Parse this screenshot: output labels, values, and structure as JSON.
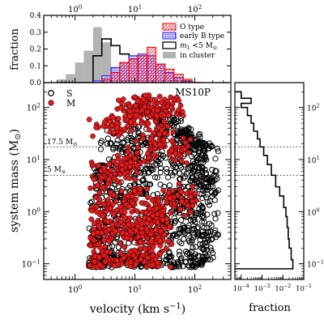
{
  "chart_data": [
    {
      "panel": "top-histogram",
      "type": "bar",
      "ylabel": "fraction",
      "xscale": "log",
      "xlim": [
        0.3,
        400
      ],
      "ylim": [
        0,
        0.4
      ],
      "x_tick_labels": [
        "10^0",
        "10^1",
        "10^2"
      ],
      "x_ticks": [
        1,
        10,
        100
      ],
      "y_tick_labels": [
        "0.0",
        "0.1",
        "0.2",
        "0.3",
        "0.4"
      ],
      "y_ticks": [
        0,
        0.1,
        0.2,
        0.3,
        0.4
      ],
      "bin_edges": [
        0.5,
        0.7,
        1.0,
        1.4,
        2.0,
        2.8,
        4.0,
        5.6,
        8.0,
        11.2,
        16,
        22.4,
        32,
        45,
        64,
        90,
        128
      ],
      "series": [
        {
          "name": "in cluster",
          "style": "gray-fill",
          "color": "#b3b3b3",
          "values": [
            0.02,
            0.05,
            0.12,
            0.19,
            0.33,
            0.24,
            0.07,
            0.02,
            0.0,
            0.0,
            0.0,
            0.0,
            0.0,
            0.0,
            0.0,
            0.0
          ]
        },
        {
          "name": "m_1 <5 M_⊙",
          "style": "black-step",
          "color": "#000000",
          "values": [
            0.0,
            0.0,
            0.0,
            0.0,
            0.16,
            0.26,
            0.22,
            0.17,
            0.13,
            0.09,
            0.05,
            0.03,
            0.01,
            0.0,
            0.0,
            0.0
          ]
        },
        {
          "name": "early B type",
          "style": "blue-grid",
          "color": "#1f1fff",
          "values": [
            0.0,
            0.0,
            0.0,
            0.0,
            0.01,
            0.04,
            0.09,
            0.12,
            0.16,
            0.17,
            0.16,
            0.11,
            0.06,
            0.03,
            0.01,
            0.0
          ]
        },
        {
          "name": "O type",
          "style": "red-hatch",
          "color": "#ff0000",
          "values": [
            0.0,
            0.0,
            0.0,
            0.0,
            0.0,
            0.02,
            0.06,
            0.12,
            0.14,
            0.16,
            0.21,
            0.11,
            0.08,
            0.05,
            0.02,
            0.0
          ]
        }
      ],
      "legend_position": "top-right"
    },
    {
      "panel": "main-scatter",
      "type": "scatter",
      "title": "MS10P",
      "xlabel": "velocity (km s^−1)",
      "ylabel": "system mass (M_⊙)",
      "xscale": "log",
      "yscale": "log",
      "xlim": [
        0.3,
        400
      ],
      "ylim": [
        0.05,
        300
      ],
      "x_tick_labels": [
        "10^0",
        "10^1",
        "10^2"
      ],
      "x_ticks": [
        1,
        10,
        100
      ],
      "y_tick_labels": [
        "10^-1",
        "10^0",
        "10^1",
        "10^2"
      ],
      "y_ticks": [
        0.1,
        1,
        10,
        100
      ],
      "reference_lines": [
        {
          "y": 17.5,
          "label": "17.5 M_⊙",
          "style": "dotted"
        },
        {
          "y": 5,
          "label": "5 M_⊙",
          "style": "dotted"
        }
      ],
      "legend": [
        {
          "name": "S",
          "marker": "open-circle-black"
        },
        {
          "name": "M",
          "marker": "filled-circle-red"
        }
      ],
      "series": [
        {
          "name": "S",
          "marker": "open-circle",
          "color": "#000000",
          "description_points": [
            [
              2.0,
              0.09
            ],
            [
              3.0,
              0.1
            ],
            [
              5.0,
              0.12
            ],
            [
              8.0,
              0.09
            ],
            [
              12,
              0.1
            ],
            [
              20,
              0.11
            ],
            [
              40,
              0.1
            ],
            [
              70,
              0.09
            ],
            [
              120,
              0.1
            ],
            [
              2.0,
              0.3
            ],
            [
              4.0,
              0.5
            ],
            [
              10,
              0.4
            ],
            [
              30,
              0.6
            ],
            [
              60,
              0.4
            ],
            [
              100,
              0.5
            ],
            [
              150,
              0.3
            ],
            [
              2.5,
              1.5
            ],
            [
              6.0,
              2.0
            ],
            [
              15,
              3.0
            ],
            [
              40,
              2.0
            ],
            [
              80,
              1.5
            ],
            [
              120,
              1.0
            ],
            [
              3.0,
              6.0
            ],
            [
              8.0,
              8.0
            ],
            [
              20,
              10
            ],
            [
              50,
              7.0
            ],
            [
              100,
              6.0
            ],
            [
              150,
              4.0
            ],
            [
              200,
              3.0
            ],
            [
              5.0,
              20
            ],
            [
              12,
              25
            ],
            [
              30,
              40
            ],
            [
              60,
              30
            ],
            [
              90,
              20
            ],
            [
              140,
              15
            ]
          ]
        },
        {
          "name": "M",
          "marker": "filled-circle",
          "color": "#e41a1c",
          "description_points": [
            [
              2.0,
              0.09
            ],
            [
              3.0,
              0.11
            ],
            [
              5.0,
              0.1
            ],
            [
              10,
              0.12
            ],
            [
              20,
              0.1
            ],
            [
              2.2,
              0.3
            ],
            [
              4.0,
              0.4
            ],
            [
              8.0,
              0.5
            ],
            [
              15,
              0.3
            ],
            [
              25,
              0.4
            ],
            [
              2.5,
              1.0
            ],
            [
              5.0,
              1.5
            ],
            [
              10,
              2.0
            ],
            [
              20,
              1.0
            ],
            [
              40,
              1.5
            ],
            [
              70,
              2.0
            ],
            [
              3.0,
              5.0
            ],
            [
              6.0,
              7.0
            ],
            [
              10,
              10
            ],
            [
              20,
              20
            ],
            [
              30,
              30
            ],
            [
              50,
              15
            ],
            [
              4.0,
              40
            ],
            [
              8.0,
              70
            ],
            [
              12,
              90
            ],
            [
              16,
              110
            ],
            [
              25,
              100
            ],
            [
              40,
              120
            ]
          ]
        }
      ]
    },
    {
      "panel": "right-histogram",
      "type": "line",
      "xlabel": "fraction",
      "xscale": "log",
      "yscale": "log",
      "xlim": [
        5e-05,
        0.1
      ],
      "ylim": [
        0.05,
        300
      ],
      "x_tick_labels": [
        "10^-4",
        "10^-3",
        "10^-2",
        "10^-1"
      ],
      "x_ticks": [
        0.0001,
        0.001,
        0.01,
        0.1
      ],
      "mass_bin_edges": [
        200,
        150,
        120,
        100,
        70,
        50,
        35,
        25,
        17.5,
        12,
        8,
        5,
        3,
        2,
        1.2,
        0.8,
        0.5,
        0.3,
        0.2,
        0.12,
        0.08
      ],
      "fraction_values": [
        0.0001,
        0.0003,
        0.0001,
        0.0002,
        0.0003,
        0.0004,
        0.0006,
        0.0008,
        0.0012,
        0.0018,
        0.0028,
        0.0045,
        0.007,
        0.011,
        0.014,
        0.016,
        0.018,
        0.02,
        0.025,
        0.03
      ]
    }
  ],
  "legend_labels": {
    "o_type": "O type",
    "early_b": "early B type",
    "m1": "m",
    "m1_sub": "1",
    "m1_rest": " <5 M",
    "sun": "⊙",
    "in_cluster": "in cluster"
  },
  "scatter_legend": {
    "s_label": "S",
    "m_label": "M"
  },
  "labels": {
    "top_ylabel": "fraction",
    "main_title": "MS10P",
    "main_ylabel_main": "system mass (M",
    "main_ylabel_end": ")",
    "main_xlabel_main": "velocity (km s",
    "main_xlabel_exp": "−1",
    "main_xlabel_end": ")",
    "right_xlabel": "fraction",
    "ref_175_value": "17.5 M",
    "ref_5_value": "5 M"
  },
  "tick_text": {
    "ten": "10",
    "top_x": [
      "0",
      "1",
      "2"
    ],
    "top_y": [
      "0.0",
      "0.1",
      "0.2",
      "0.3",
      "0.4"
    ],
    "main_x": [
      "0",
      "1",
      "2"
    ],
    "main_y": [
      "−1",
      "0",
      "1",
      "2"
    ],
    "right_x": [
      "−4",
      "−3",
      "−2",
      "−1"
    ]
  },
  "colors": {
    "o_type": "#ff0000",
    "early_b": "#1f1fff",
    "m1": "#000000",
    "in_cluster": "#b3b3b3",
    "scatter_m": "#e41a1c",
    "scatter_s": "#000000"
  }
}
